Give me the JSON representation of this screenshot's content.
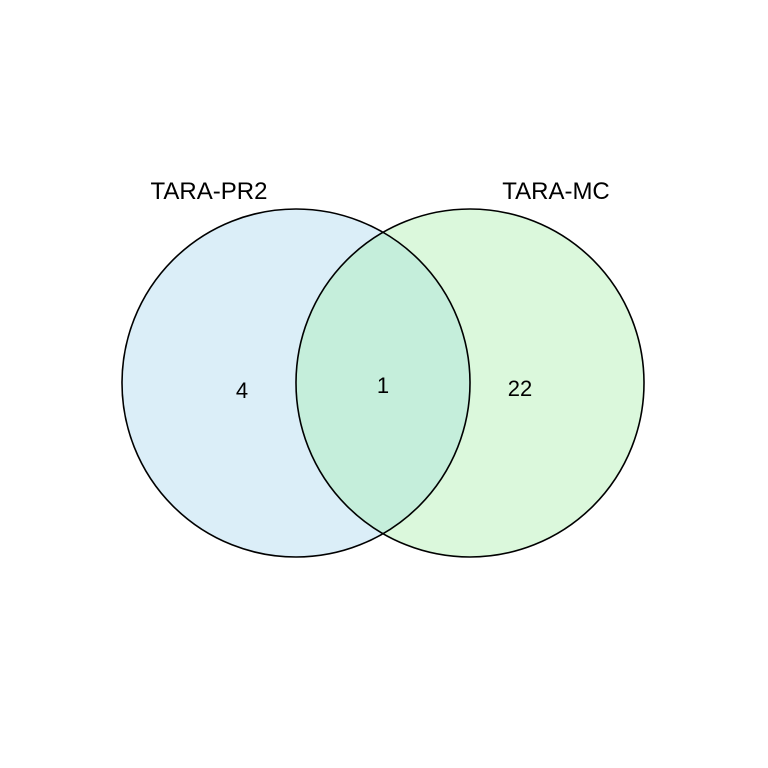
{
  "venn": {
    "sets": [
      {
        "label": "TARA-PR2",
        "fill": "#dbeef8"
      },
      {
        "label": "TARA-MC",
        "fill": "#dbf8dc"
      }
    ],
    "overlap_fill": "#c5eedb",
    "outline_color": "#000000",
    "counts": {
      "left_only": "4",
      "both": "1",
      "right_only": "22"
    }
  }
}
